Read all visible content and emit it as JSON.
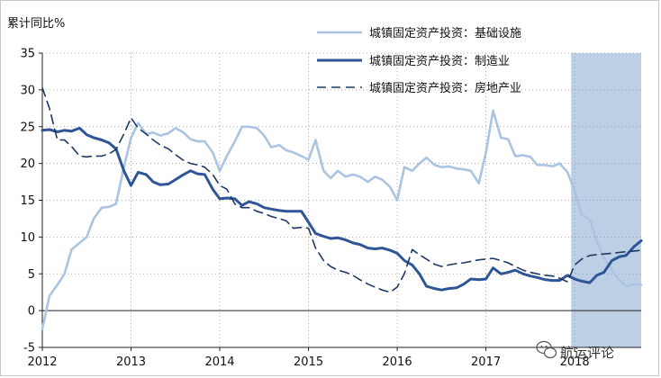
{
  "chart_data": {
    "type": "line",
    "title": "",
    "unit_label": "累计同比%",
    "xlabel": "",
    "ylabel": "",
    "ylim": [
      -5,
      35
    ],
    "yticks": [
      -5,
      0,
      5,
      10,
      15,
      20,
      25,
      30,
      35
    ],
    "x_tick_labels": [
      "2012",
      "2013",
      "2014",
      "2015",
      "2016",
      "2017",
      "2018"
    ],
    "x_range": [
      2012.0,
      2018.75
    ],
    "grid": true,
    "legend_position": "top-right",
    "highlight_region": {
      "from": 2017.96,
      "to": 2018.75,
      "color": "#b8cce4"
    },
    "series": [
      {
        "name": "城镇固定资产投资：基础设施",
        "color": "#aac4e2",
        "dash": "solid",
        "points": [
          [
            2012.0,
            -2.5
          ],
          [
            2012.08,
            2.0
          ],
          [
            2012.17,
            3.5
          ],
          [
            2012.25,
            5.0
          ],
          [
            2012.33,
            8.3
          ],
          [
            2012.42,
            9.2
          ],
          [
            2012.5,
            10.0
          ],
          [
            2012.58,
            12.5
          ],
          [
            2012.67,
            14.0
          ],
          [
            2012.75,
            14.1
          ],
          [
            2012.83,
            14.5
          ],
          [
            2012.92,
            19.5
          ],
          [
            2013.0,
            23.5
          ],
          [
            2013.08,
            25.5
          ],
          [
            2013.17,
            24.0
          ],
          [
            2013.25,
            24.2
          ],
          [
            2013.33,
            23.8
          ],
          [
            2013.42,
            24.1
          ],
          [
            2013.5,
            24.8
          ],
          [
            2013.58,
            24.3
          ],
          [
            2013.67,
            23.3
          ],
          [
            2013.75,
            23.0
          ],
          [
            2013.83,
            23.0
          ],
          [
            2013.92,
            21.5
          ],
          [
            2014.0,
            19.0
          ],
          [
            2014.08,
            21.0
          ],
          [
            2014.17,
            23.0
          ],
          [
            2014.25,
            25.0
          ],
          [
            2014.33,
            25.0
          ],
          [
            2014.42,
            24.8
          ],
          [
            2014.5,
            23.8
          ],
          [
            2014.58,
            22.2
          ],
          [
            2014.67,
            22.5
          ],
          [
            2014.75,
            21.8
          ],
          [
            2014.83,
            21.5
          ],
          [
            2014.92,
            21.0
          ],
          [
            2015.0,
            20.5
          ],
          [
            2015.08,
            23.2
          ],
          [
            2015.17,
            19.0
          ],
          [
            2015.25,
            18.0
          ],
          [
            2015.33,
            19.0
          ],
          [
            2015.42,
            18.2
          ],
          [
            2015.5,
            18.5
          ],
          [
            2015.58,
            18.2
          ],
          [
            2015.67,
            17.5
          ],
          [
            2015.75,
            18.2
          ],
          [
            2015.83,
            17.8
          ],
          [
            2015.92,
            16.8
          ],
          [
            2016.0,
            15.0
          ],
          [
            2016.08,
            19.5
          ],
          [
            2016.17,
            19.0
          ],
          [
            2016.25,
            20.0
          ],
          [
            2016.33,
            20.8
          ],
          [
            2016.42,
            19.8
          ],
          [
            2016.5,
            19.5
          ],
          [
            2016.58,
            19.6
          ],
          [
            2016.67,
            19.3
          ],
          [
            2016.75,
            19.2
          ],
          [
            2016.83,
            19.0
          ],
          [
            2016.92,
            17.3
          ],
          [
            2017.0,
            21.5
          ],
          [
            2017.08,
            27.2
          ],
          [
            2017.17,
            23.5
          ],
          [
            2017.25,
            23.3
          ],
          [
            2017.33,
            21.0
          ],
          [
            2017.42,
            21.1
          ],
          [
            2017.5,
            20.9
          ],
          [
            2017.58,
            19.8
          ],
          [
            2017.67,
            19.8
          ],
          [
            2017.75,
            19.6
          ],
          [
            2017.83,
            20.0
          ],
          [
            2017.92,
            18.8
          ],
          [
            2018.0,
            16.3
          ],
          [
            2018.08,
            13.0
          ],
          [
            2018.17,
            12.4
          ],
          [
            2018.25,
            9.4
          ],
          [
            2018.33,
            7.2
          ],
          [
            2018.42,
            5.5
          ],
          [
            2018.5,
            4.2
          ],
          [
            2018.58,
            3.3
          ],
          [
            2018.67,
            3.6
          ],
          [
            2018.75,
            3.5
          ]
        ]
      },
      {
        "name": "城镇固定资产投资：制造业",
        "color": "#2f5597",
        "dash": "solid",
        "points": [
          [
            2012.0,
            24.5
          ],
          [
            2012.08,
            24.6
          ],
          [
            2012.17,
            24.3
          ],
          [
            2012.25,
            24.5
          ],
          [
            2012.33,
            24.4
          ],
          [
            2012.42,
            24.8
          ],
          [
            2012.5,
            23.9
          ],
          [
            2012.58,
            23.5
          ],
          [
            2012.67,
            23.2
          ],
          [
            2012.75,
            22.8
          ],
          [
            2012.83,
            22.0
          ],
          [
            2012.92,
            19.0
          ],
          [
            2013.0,
            17.0
          ],
          [
            2013.08,
            18.8
          ],
          [
            2013.17,
            18.5
          ],
          [
            2013.25,
            17.5
          ],
          [
            2013.33,
            17.1
          ],
          [
            2013.42,
            17.2
          ],
          [
            2013.5,
            17.8
          ],
          [
            2013.58,
            18.4
          ],
          [
            2013.67,
            19.0
          ],
          [
            2013.75,
            18.6
          ],
          [
            2013.83,
            18.5
          ],
          [
            2013.92,
            16.5
          ],
          [
            2014.0,
            15.2
          ],
          [
            2014.08,
            15.3
          ],
          [
            2014.17,
            15.2
          ],
          [
            2014.25,
            14.3
          ],
          [
            2014.33,
            14.8
          ],
          [
            2014.42,
            14.5
          ],
          [
            2014.5,
            14.0
          ],
          [
            2014.58,
            13.8
          ],
          [
            2014.67,
            13.6
          ],
          [
            2014.75,
            13.5
          ],
          [
            2014.83,
            13.5
          ],
          [
            2014.92,
            13.5
          ],
          [
            2015.0,
            12.0
          ],
          [
            2015.08,
            10.5
          ],
          [
            2015.17,
            10.1
          ],
          [
            2015.25,
            9.8
          ],
          [
            2015.33,
            9.9
          ],
          [
            2015.42,
            9.6
          ],
          [
            2015.5,
            9.2
          ],
          [
            2015.58,
            9.0
          ],
          [
            2015.67,
            8.5
          ],
          [
            2015.75,
            8.4
          ],
          [
            2015.83,
            8.5
          ],
          [
            2015.92,
            8.2
          ],
          [
            2016.0,
            7.8
          ],
          [
            2016.08,
            6.8
          ],
          [
            2016.17,
            6.2
          ],
          [
            2016.25,
            5.0
          ],
          [
            2016.33,
            3.3
          ],
          [
            2016.42,
            3.0
          ],
          [
            2016.5,
            2.8
          ],
          [
            2016.58,
            3.0
          ],
          [
            2016.67,
            3.1
          ],
          [
            2016.75,
            3.6
          ],
          [
            2016.83,
            4.3
          ],
          [
            2016.92,
            4.2
          ],
          [
            2017.0,
            4.3
          ],
          [
            2017.08,
            5.8
          ],
          [
            2017.17,
            5.0
          ],
          [
            2017.25,
            5.2
          ],
          [
            2017.33,
            5.5
          ],
          [
            2017.42,
            5.0
          ],
          [
            2017.5,
            4.7
          ],
          [
            2017.58,
            4.5
          ],
          [
            2017.67,
            4.2
          ],
          [
            2017.75,
            4.1
          ],
          [
            2017.83,
            4.1
          ],
          [
            2017.92,
            4.8
          ],
          [
            2018.0,
            4.3
          ],
          [
            2018.08,
            4.0
          ],
          [
            2018.17,
            3.8
          ],
          [
            2018.25,
            4.8
          ],
          [
            2018.33,
            5.2
          ],
          [
            2018.42,
            6.8
          ],
          [
            2018.5,
            7.3
          ],
          [
            2018.58,
            7.5
          ],
          [
            2018.67,
            8.7
          ],
          [
            2018.75,
            9.5
          ]
        ]
      },
      {
        "name": "城镇固定资产投资：房地产业",
        "color": "#1f3864",
        "dash": "dashed",
        "points": [
          [
            2012.0,
            30.3
          ],
          [
            2012.08,
            27.5
          ],
          [
            2012.17,
            23.2
          ],
          [
            2012.25,
            23.2
          ],
          [
            2012.33,
            22.3
          ],
          [
            2012.42,
            21.0
          ],
          [
            2012.5,
            20.9
          ],
          [
            2012.58,
            21.0
          ],
          [
            2012.67,
            21.0
          ],
          [
            2012.75,
            21.3
          ],
          [
            2012.83,
            21.9
          ],
          [
            2012.92,
            24.0
          ],
          [
            2013.0,
            26.2
          ],
          [
            2013.08,
            24.8
          ],
          [
            2013.17,
            24.0
          ],
          [
            2013.25,
            23.2
          ],
          [
            2013.33,
            22.5
          ],
          [
            2013.42,
            22.0
          ],
          [
            2013.5,
            21.2
          ],
          [
            2013.58,
            20.5
          ],
          [
            2013.67,
            20.0
          ],
          [
            2013.75,
            19.8
          ],
          [
            2013.83,
            19.5
          ],
          [
            2013.92,
            18.5
          ],
          [
            2014.0,
            17.0
          ],
          [
            2014.08,
            16.5
          ],
          [
            2014.17,
            14.5
          ],
          [
            2014.25,
            14.0
          ],
          [
            2014.33,
            14.0
          ],
          [
            2014.42,
            13.5
          ],
          [
            2014.5,
            13.2
          ],
          [
            2014.58,
            12.8
          ],
          [
            2014.67,
            12.5
          ],
          [
            2014.75,
            12.2
          ],
          [
            2014.83,
            11.2
          ],
          [
            2014.92,
            11.3
          ],
          [
            2015.0,
            11.2
          ],
          [
            2015.08,
            8.5
          ],
          [
            2015.17,
            6.8
          ],
          [
            2015.25,
            6.0
          ],
          [
            2015.33,
            5.5
          ],
          [
            2015.42,
            5.2
          ],
          [
            2015.5,
            4.8
          ],
          [
            2015.58,
            4.2
          ],
          [
            2015.67,
            3.6
          ],
          [
            2015.75,
            3.2
          ],
          [
            2015.83,
            2.8
          ],
          [
            2015.92,
            2.5
          ],
          [
            2016.0,
            3.2
          ],
          [
            2016.08,
            5.0
          ],
          [
            2016.17,
            8.3
          ],
          [
            2016.25,
            7.6
          ],
          [
            2016.33,
            7.0
          ],
          [
            2016.42,
            6.3
          ],
          [
            2016.5,
            6.0
          ],
          [
            2016.58,
            6.2
          ],
          [
            2016.67,
            6.4
          ],
          [
            2016.75,
            6.5
          ],
          [
            2016.83,
            6.7
          ],
          [
            2016.92,
            6.9
          ],
          [
            2017.0,
            7.0
          ],
          [
            2017.08,
            7.1
          ],
          [
            2017.17,
            6.8
          ],
          [
            2017.25,
            6.5
          ],
          [
            2017.33,
            6.0
          ],
          [
            2017.42,
            5.5
          ],
          [
            2017.5,
            5.2
          ],
          [
            2017.58,
            5.0
          ],
          [
            2017.67,
            4.8
          ],
          [
            2017.75,
            4.7
          ],
          [
            2017.83,
            4.4
          ],
          [
            2017.92,
            3.9
          ],
          [
            2018.0,
            6.2
          ],
          [
            2018.08,
            7.0
          ],
          [
            2018.17,
            7.5
          ],
          [
            2018.25,
            7.6
          ],
          [
            2018.33,
            7.7
          ],
          [
            2018.42,
            7.8
          ],
          [
            2018.5,
            7.9
          ],
          [
            2018.58,
            8.0
          ],
          [
            2018.67,
            8.1
          ],
          [
            2018.75,
            8.2
          ]
        ]
      }
    ]
  },
  "watermark": {
    "text": "航运评论",
    "icon": "wechat-icon"
  }
}
